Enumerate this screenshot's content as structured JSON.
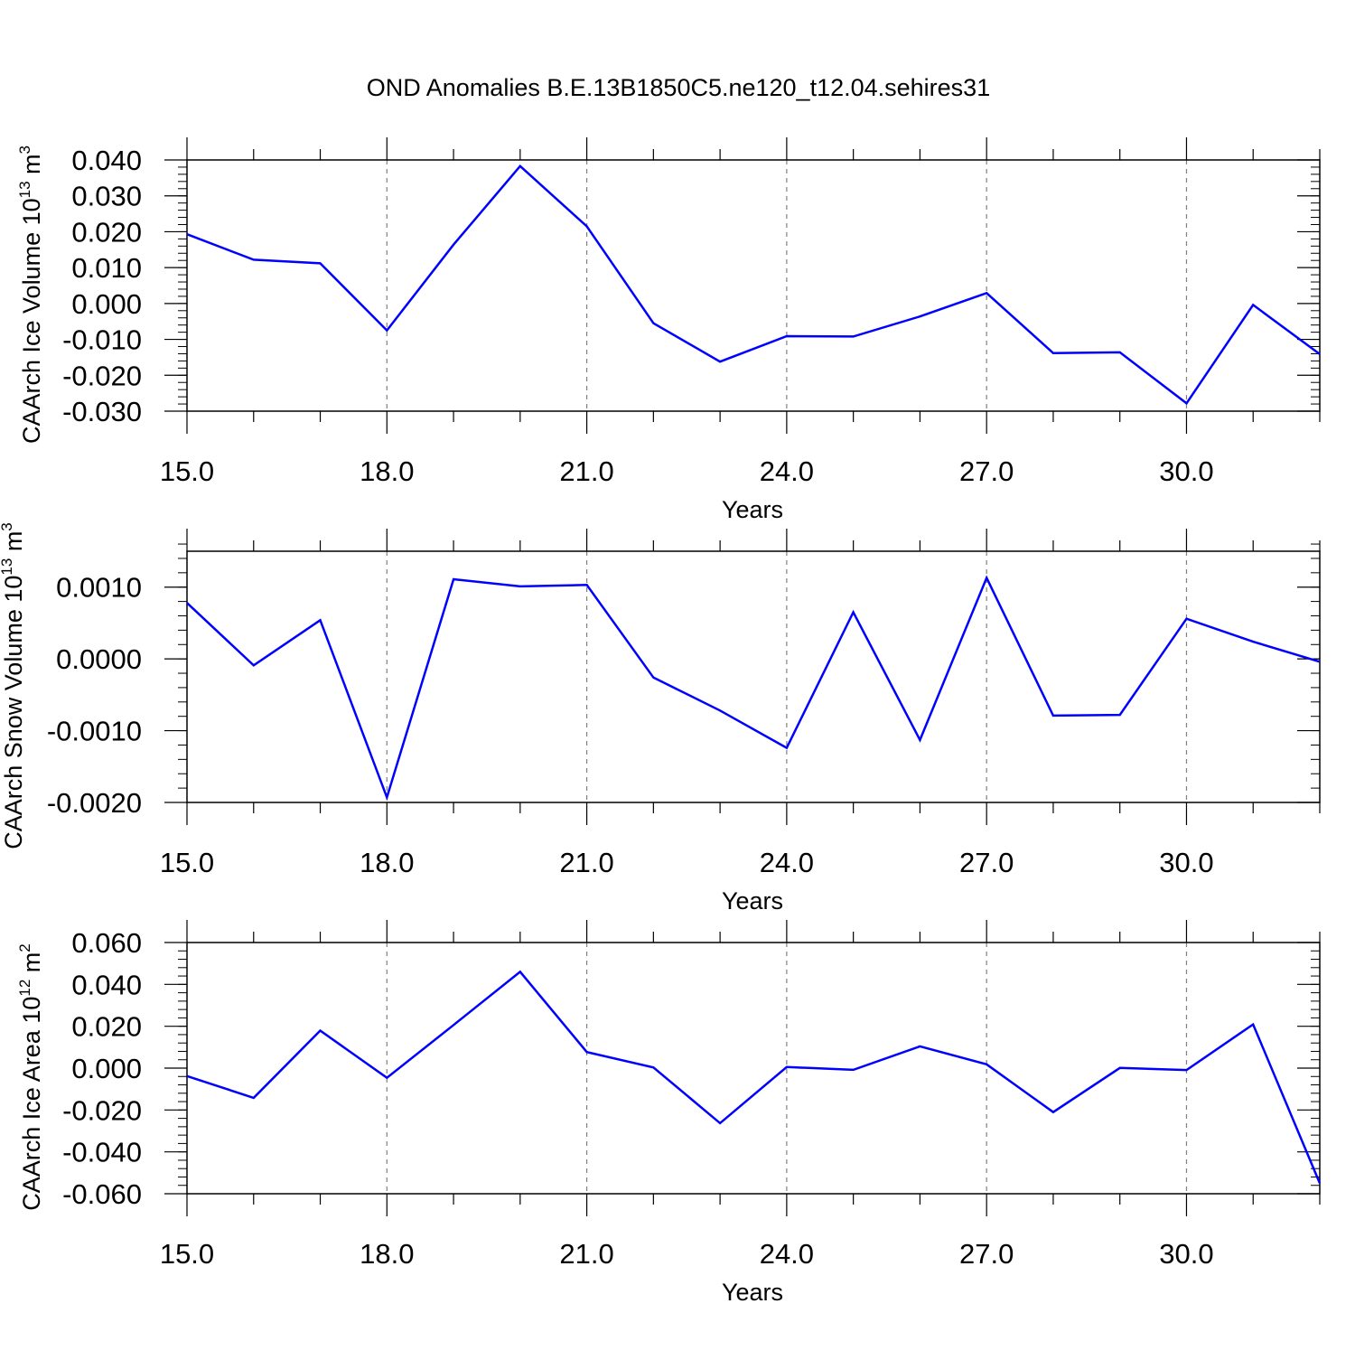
{
  "figure": {
    "title": "OND Anomalies B.E.13B1850C5.ne120_t12.04.sehires31"
  },
  "colors": {
    "series": "#0000ff",
    "axis": "#000000",
    "grid": "#808080"
  },
  "chart_data": [
    {
      "type": "line",
      "ylabel_text": "CAArch Ice Volume 10",
      "ylabel_exp": "13",
      "ylabel_unit": " m",
      "ylabel_unit_exp": "3",
      "xlabel": "Years",
      "xlim": [
        15,
        32
      ],
      "ylim": [
        -0.03,
        0.04
      ],
      "xticks": [
        15,
        18,
        21,
        24,
        27,
        30
      ],
      "xtick_labels": [
        "15.0",
        "18.0",
        "21.0",
        "24.0",
        "27.0",
        "30.0"
      ],
      "yticks": [
        0.04,
        0.03,
        0.02,
        0.01,
        0.0,
        -0.01,
        -0.02,
        -0.03
      ],
      "ytick_labels": [
        "0.040",
        "0.030",
        "0.020",
        "0.010",
        "0.000",
        "-0.010",
        "-0.020",
        "-0.030"
      ],
      "grid": "x-dashed",
      "x": [
        15,
        16,
        17,
        18,
        19,
        20,
        21,
        22,
        23,
        24,
        25,
        26,
        27,
        28,
        29,
        30,
        31,
        32
      ],
      "values": [
        0.0193,
        0.0122,
        0.0112,
        -0.0075,
        0.0164,
        0.0383,
        0.0215,
        -0.0055,
        -0.0162,
        -0.0091,
        -0.0092,
        -0.0036,
        0.0029,
        -0.0138,
        -0.0136,
        -0.0278,
        -0.0004,
        -0.0141
      ]
    },
    {
      "type": "line",
      "ylabel_text": "CAArch Snow Volume 10",
      "ylabel_exp": "13",
      "ylabel_unit": " m",
      "ylabel_unit_exp": "3",
      "xlabel": "Years",
      "xlim": [
        15,
        32
      ],
      "ylim": [
        -0.002,
        0.0015
      ],
      "xticks": [
        15,
        18,
        21,
        24,
        27,
        30
      ],
      "xtick_labels": [
        "15.0",
        "18.0",
        "21.0",
        "24.0",
        "27.0",
        "30.0"
      ],
      "yticks": [
        0.001,
        0.0,
        -0.001,
        -0.002
      ],
      "ytick_labels": [
        "0.0010",
        "0.0000",
        "-0.0010",
        "-0.0020"
      ],
      "grid": "x-dashed",
      "x": [
        15,
        16,
        17,
        18,
        19,
        20,
        21,
        22,
        23,
        24,
        25,
        26,
        27,
        28,
        29,
        30,
        31,
        32
      ],
      "values": [
        0.00078,
        -9e-05,
        0.00054,
        -0.00193,
        0.00111,
        0.00101,
        0.00103,
        -0.00026,
        -0.00072,
        -0.00124,
        0.00065,
        -0.00113,
        0.00113,
        -0.00079,
        -0.00078,
        0.00056,
        0.00024,
        -4e-05
      ]
    },
    {
      "type": "line",
      "ylabel_text": "CAArch Ice Area 10",
      "ylabel_exp": "12",
      "ylabel_unit": " m",
      "ylabel_unit_exp": "2",
      "xlabel": "Years",
      "xlim": [
        15,
        32
      ],
      "ylim": [
        -0.06,
        0.06
      ],
      "xticks": [
        15,
        18,
        21,
        24,
        27,
        30
      ],
      "xtick_labels": [
        "15.0",
        "18.0",
        "21.0",
        "24.0",
        "27.0",
        "30.0"
      ],
      "yticks": [
        0.06,
        0.04,
        0.02,
        0.0,
        -0.02,
        -0.04,
        -0.06
      ],
      "ytick_labels": [
        "0.060",
        "0.040",
        "0.020",
        "0.000",
        "-0.020",
        "-0.040",
        "-0.060"
      ],
      "grid": "x-dashed",
      "x": [
        15,
        16,
        17,
        18,
        19,
        20,
        21,
        22,
        23,
        24,
        25,
        26,
        27,
        28,
        29,
        30,
        31,
        32
      ],
      "values": [
        -0.0038,
        -0.0142,
        0.0179,
        -0.0046,
        0.0206,
        0.046,
        0.0077,
        0.0003,
        -0.0263,
        0.0005,
        -0.0008,
        0.0104,
        0.0018,
        -0.021,
        0.0001,
        -0.0009,
        0.0209,
        -0.055
      ]
    }
  ]
}
